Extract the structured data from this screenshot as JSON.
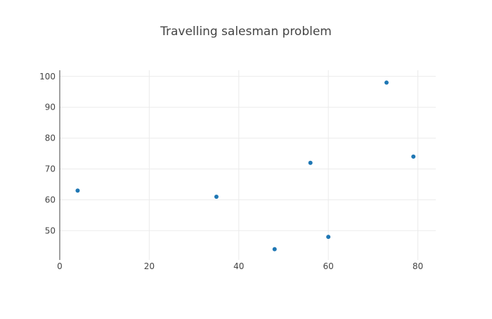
{
  "chart_data": {
    "type": "scatter",
    "title": "Travelling salesman problem",
    "xlabel": "",
    "ylabel": "",
    "xlim": [
      0,
      84
    ],
    "ylim": [
      40.5,
      102
    ],
    "x_ticks": [
      0,
      20,
      40,
      60,
      80
    ],
    "y_ticks": [
      50,
      60,
      70,
      80,
      90,
      100
    ],
    "grid": true,
    "legend": "none",
    "colors": {
      "marker": "#1f77b4",
      "grid": "#ebebeb",
      "axis": "#444444",
      "text": "#444444"
    },
    "series": [
      {
        "x": [
          4,
          35,
          48,
          56,
          60,
          73,
          79
        ],
        "y": [
          63,
          61,
          44,
          72,
          48,
          98,
          74
        ]
      }
    ]
  }
}
